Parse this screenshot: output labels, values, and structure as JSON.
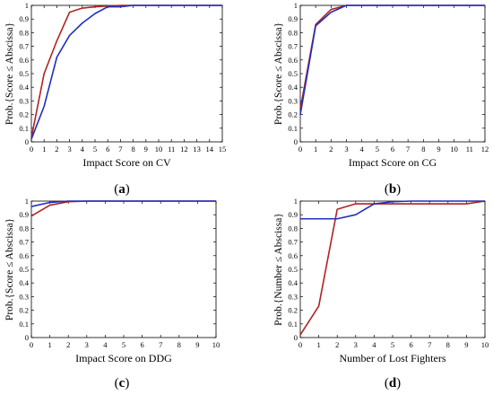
{
  "colors": {
    "red": "#b22222",
    "blue": "#1f2fbf"
  },
  "chart_data": [
    {
      "id": "a",
      "tag": "a",
      "type": "line",
      "xlabel": "Impact Score on CV",
      "ylabel": "Prob.{Score ≤ Abscissa}",
      "xlim": [
        0,
        15
      ],
      "ylim": [
        0,
        1
      ],
      "xticks": [
        0,
        1,
        2,
        3,
        4,
        5,
        6,
        7,
        8,
        9,
        10,
        11,
        12,
        13,
        14,
        15
      ],
      "yticks": [
        0,
        0.1,
        0.2,
        0.3,
        0.4,
        0.5,
        0.6,
        0.7,
        0.8,
        0.9,
        1
      ],
      "grid": false,
      "series": [
        {
          "color": "red",
          "x": [
            0,
            1,
            2,
            3,
            4,
            5,
            6,
            7,
            8,
            9,
            15
          ],
          "y": [
            0.03,
            0.5,
            0.74,
            0.95,
            0.98,
            0.99,
            0.995,
            1,
            1,
            1,
            1
          ]
        },
        {
          "color": "blue",
          "x": [
            0,
            1,
            2,
            3,
            4,
            5,
            6,
            7,
            8,
            9,
            15
          ],
          "y": [
            0.02,
            0.26,
            0.62,
            0.78,
            0.87,
            0.94,
            0.99,
            0.99,
            1,
            1,
            1
          ]
        }
      ]
    },
    {
      "id": "b",
      "tag": "b",
      "type": "line",
      "xlabel": "Impact Score on CG",
      "ylabel": "Prob.{Score ≤ Abscissa}",
      "xlim": [
        0,
        12
      ],
      "ylim": [
        0,
        1
      ],
      "xticks": [
        0,
        1,
        2,
        3,
        4,
        5,
        6,
        7,
        8,
        9,
        10,
        11,
        12
      ],
      "yticks": [
        0,
        0.1,
        0.2,
        0.3,
        0.4,
        0.5,
        0.6,
        0.7,
        0.8,
        0.9,
        1
      ],
      "grid": false,
      "series": [
        {
          "color": "red",
          "x": [
            0,
            1,
            2,
            3,
            4,
            12
          ],
          "y": [
            0.24,
            0.86,
            0.97,
            1,
            1,
            1
          ]
        },
        {
          "color": "blue",
          "x": [
            0,
            1,
            2,
            3,
            4,
            12
          ],
          "y": [
            0.2,
            0.85,
            0.95,
            1,
            1,
            1
          ]
        }
      ]
    },
    {
      "id": "c",
      "tag": "c",
      "type": "line",
      "xlabel": "Impact Score on DDG",
      "ylabel": "Prob.{Score ≤ Abscissa}",
      "xlim": [
        0,
        10
      ],
      "ylim": [
        0,
        1
      ],
      "xticks": [
        0,
        1,
        2,
        3,
        4,
        5,
        6,
        7,
        8,
        9,
        10
      ],
      "yticks": [
        0,
        0.1,
        0.2,
        0.3,
        0.4,
        0.5,
        0.6,
        0.7,
        0.8,
        0.9,
        1
      ],
      "grid": false,
      "series": [
        {
          "color": "red",
          "x": [
            0,
            1,
            2,
            3,
            10
          ],
          "y": [
            0.89,
            0.97,
            0.995,
            1,
            1
          ]
        },
        {
          "color": "blue",
          "x": [
            0,
            1,
            2,
            3,
            10
          ],
          "y": [
            0.96,
            0.99,
            1,
            1,
            1
          ]
        }
      ]
    },
    {
      "id": "d",
      "tag": "d",
      "type": "line",
      "xlabel": "Number of Lost Fighters",
      "ylabel": "Prob.{Number ≤ Abscissa}",
      "xlim": [
        0,
        10
      ],
      "ylim": [
        0,
        1
      ],
      "xticks": [
        0,
        1,
        2,
        3,
        4,
        5,
        6,
        7,
        8,
        9,
        10
      ],
      "yticks": [
        0,
        0.1,
        0.2,
        0.3,
        0.4,
        0.5,
        0.6,
        0.7,
        0.8,
        0.9,
        1
      ],
      "grid": false,
      "series": [
        {
          "color": "red",
          "x": [
            0,
            1,
            2,
            3,
            4,
            5,
            6,
            7,
            8,
            9,
            10
          ],
          "y": [
            0.02,
            0.23,
            0.94,
            0.98,
            0.98,
            0.98,
            0.98,
            0.98,
            0.98,
            0.98,
            1
          ]
        },
        {
          "color": "blue",
          "x": [
            0,
            1,
            2,
            3,
            4,
            5,
            6,
            7,
            8,
            9,
            10
          ],
          "y": [
            0.87,
            0.87,
            0.87,
            0.9,
            0.98,
            0.995,
            1,
            1,
            1,
            1,
            1
          ]
        }
      ]
    }
  ]
}
